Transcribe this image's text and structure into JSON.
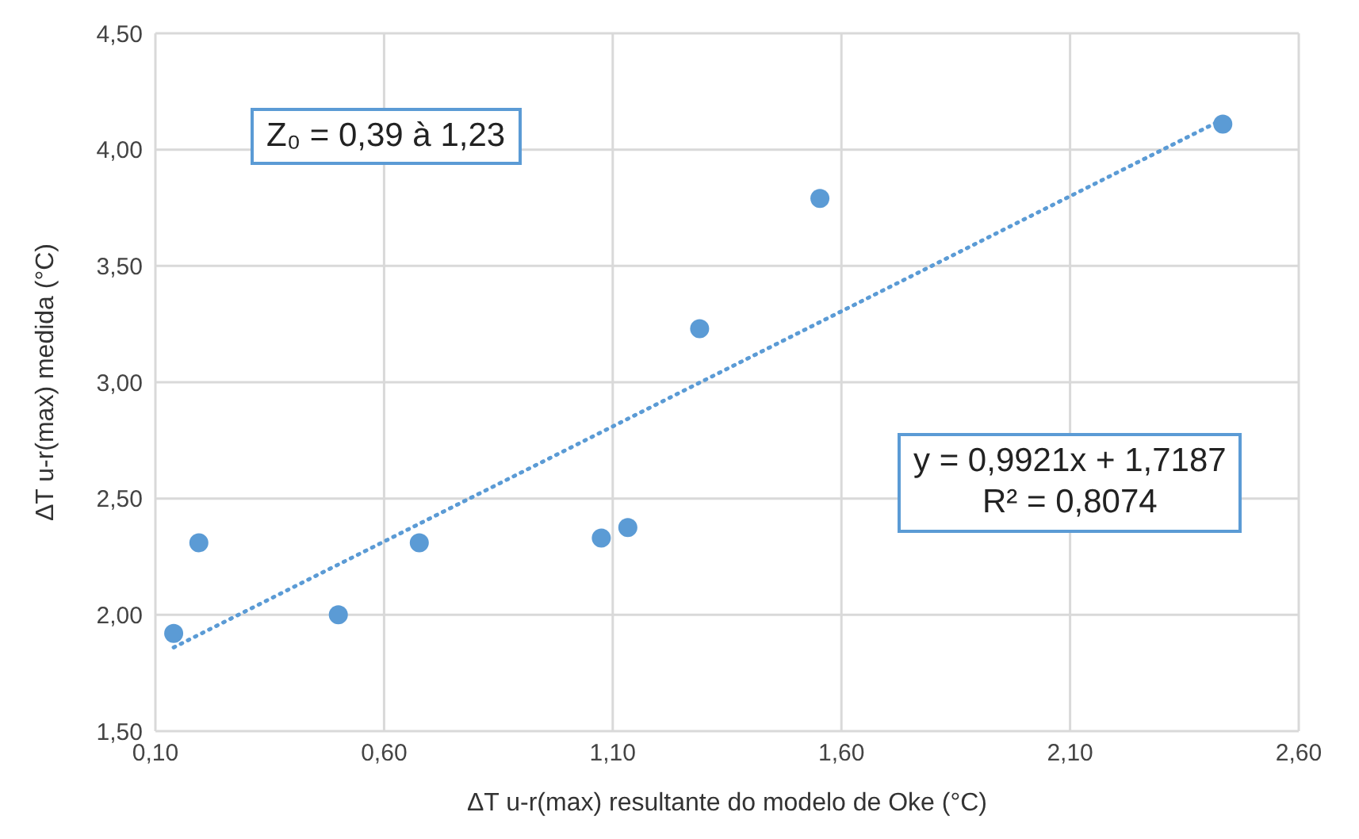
{
  "chart_data": {
    "type": "scatter",
    "xlabel": "ΔT u-r(max) resultante do modelo de Oke (°C)",
    "ylabel": "ΔT u-r(max)  medida (°C)",
    "xlim": [
      0.1,
      2.6
    ],
    "xticks": [
      {
        "value": 0.1,
        "label": "0,10"
      },
      {
        "value": 0.6,
        "label": "0,60"
      },
      {
        "value": 1.1,
        "label": "1,10"
      },
      {
        "value": 1.6,
        "label": "1,60"
      },
      {
        "value": 2.1,
        "label": "2,10"
      },
      {
        "value": 2.6,
        "label": "2,60"
      }
    ],
    "ylim": [
      1.5,
      4.5
    ],
    "yticks": [
      {
        "value": 1.5,
        "label": "1,50"
      },
      {
        "value": 2,
        "label": "2,00"
      },
      {
        "value": 2.5,
        "label": "2,50"
      },
      {
        "value": 3,
        "label": "3,00"
      },
      {
        "value": 3.5,
        "label": "3,50"
      },
      {
        "value": 4,
        "label": "4,00"
      },
      {
        "value": 4.5,
        "label": "4,50"
      }
    ],
    "grid": true,
    "marker": "circle",
    "series": [
      {
        "color": "#5b9bd5",
        "x": [
          0.14,
          0.195,
          0.5,
          0.677,
          1.075,
          1.133,
          1.29,
          1.553,
          2.434
        ],
        "values": [
          1.92,
          2.31,
          2.0,
          2.31,
          2.33,
          2.375,
          3.23,
          3.79,
          4.11
        ]
      },
      {
        "type": "line",
        "color": "#5b9bd5",
        "line_style": "dotted",
        "marker": "none",
        "x": [
          0.14,
          2.434
        ],
        "values": [
          1.86,
          4.13
        ]
      }
    ],
    "annotations": [
      "Z₀ = 0,39 à 1,23",
      "y = 0,9921x + 1,7187\nR² = 0,8074"
    ]
  }
}
